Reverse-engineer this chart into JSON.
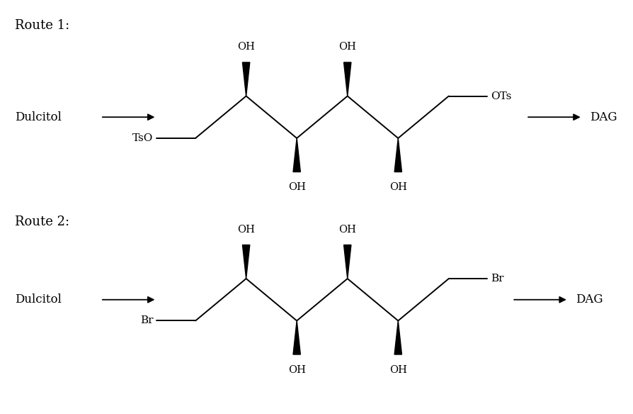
{
  "background_color": "#ffffff",
  "route1_label": "Route 1:",
  "route2_label": "Route 2:",
  "dulcitol": "Dulcitol",
  "dag": "DAG",
  "route1_left_group": "TsO",
  "route1_right_group": "OTs",
  "route2_left_group": "Br",
  "route2_right_group": "Br",
  "oh_label": "OH",
  "fig_width": 8.95,
  "fig_height": 5.84,
  "dpi": 100,
  "line_color": "#000000",
  "text_color": "#000000"
}
